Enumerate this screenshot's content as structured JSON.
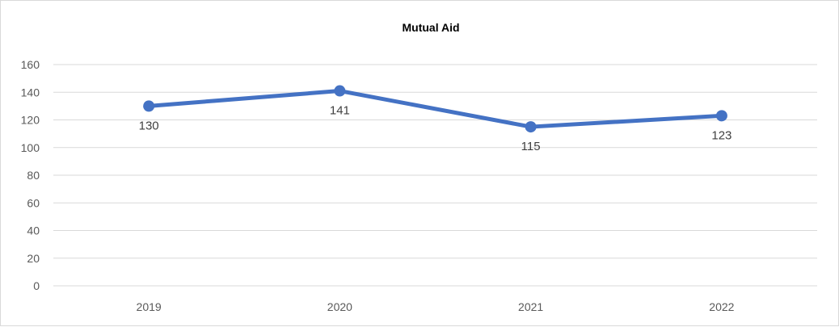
{
  "chart_data": {
    "type": "line",
    "title": "Mutual Aid",
    "xlabel": "",
    "ylabel": "",
    "categories": [
      "2019",
      "2020",
      "2021",
      "2022"
    ],
    "series": [
      {
        "values": [
          130,
          141,
          115,
          123
        ]
      }
    ],
    "data_labels": [
      "130",
      "141",
      "115",
      "123"
    ],
    "y_ticks": [
      "0",
      "20",
      "40",
      "60",
      "80",
      "100",
      "120",
      "140",
      "160"
    ],
    "ylim": [
      0,
      160
    ],
    "grid": true,
    "legend": "none",
    "line_color": "#4472c4",
    "grid_color": "#d9d9d9"
  }
}
